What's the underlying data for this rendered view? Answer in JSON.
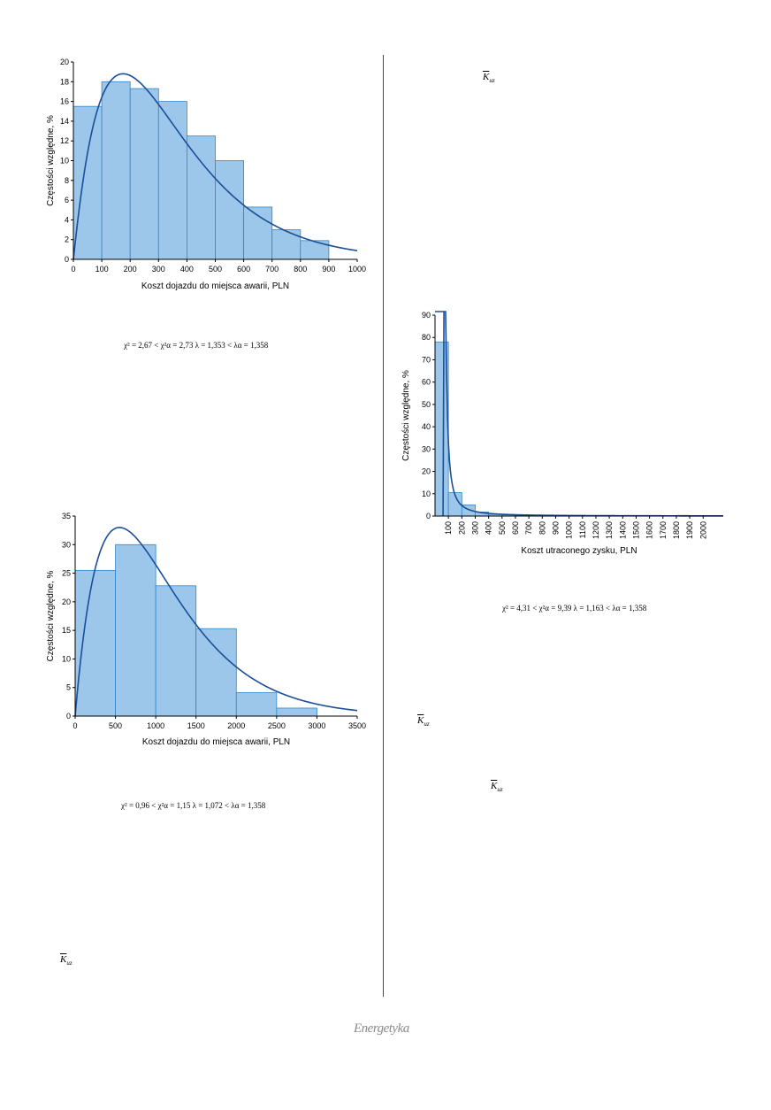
{
  "colors": {
    "bar_fill": "#9cc7ea",
    "bar_stroke": "#2f86c9",
    "curve": "#1a4e9a",
    "axis": "#000000"
  },
  "left_column": {
    "formula1": "χ² = 2,67 < χ²α = 2,73     λ = 1,353 < λα = 1,358",
    "formula2": "χ² = 0,96 < χ²α = 1,15     λ = 1,072 < λα = 1,358",
    "kuz": {
      "symbol": "K",
      "subscript": "uz"
    }
  },
  "right_column": {
    "kuz_top": {
      "symbol": "K",
      "subscript": "uz"
    },
    "formula3": "χ² = 4,31 < χ²α = 9,39     λ = 1,163 < λα = 1,358",
    "kuz_mid": {
      "symbol": "K",
      "subscript": "uz"
    },
    "kuz_low": {
      "symbol": "K",
      "subscript": "uz"
    }
  },
  "footer": {
    "logo": "Energetyka"
  },
  "chart_data": [
    {
      "type": "bar",
      "title": "",
      "xlabel": "Koszt dojazdu do miejsca awarii, PLN",
      "ylabel": "Częstości względne, %",
      "bin_edges": [
        0,
        100,
        200,
        300,
        400,
        500,
        600,
        700,
        800,
        900
      ],
      "values": [
        15.5,
        18,
        17.3,
        16,
        12.5,
        10,
        5.3,
        3,
        1.9
      ],
      "xlim": [
        0,
        1000
      ],
      "ylim": [
        0,
        20
      ],
      "xticks": [
        0,
        100,
        200,
        300,
        400,
        500,
        600,
        700,
        800,
        900,
        1000
      ],
      "yticks": [
        0,
        2,
        4,
        6,
        8,
        10,
        12,
        14,
        16,
        18,
        20
      ],
      "curve": {
        "type": "gamma-like",
        "k": 2.03,
        "theta": 170,
        "peak": 18.8
      }
    },
    {
      "type": "bar",
      "title": "",
      "xlabel": "Koszt dojazdu do miejsca awarii, PLN",
      "ylabel": "Częstości względne, %",
      "bin_edges": [
        0,
        500,
        1000,
        1500,
        2000,
        2500,
        3000
      ],
      "values": [
        25.5,
        30,
        22.8,
        15.3,
        4.1,
        1.4
      ],
      "xlim": [
        0,
        3500
      ],
      "ylim": [
        0,
        35
      ],
      "xticks": [
        0,
        500,
        1000,
        1500,
        2000,
        2500,
        3000,
        3500
      ],
      "yticks": [
        0,
        5,
        10,
        15,
        20,
        25,
        30,
        35
      ],
      "curve": {
        "type": "gamma-like",
        "k": 2.0,
        "theta": 550,
        "peak": 33
      }
    },
    {
      "type": "bar",
      "title": "",
      "xlabel": "Koszt utraconego zysku, PLN",
      "ylabel": "Częstości względne, %",
      "bin_edges": [
        0,
        100,
        200,
        300,
        400,
        500,
        600,
        700,
        800,
        900,
        1000,
        1100,
        1200,
        1300,
        1400,
        1500,
        1600,
        1700,
        1800,
        1900,
        2000,
        2100
      ],
      "values": [
        78,
        10.5,
        5,
        1.8,
        0.8,
        0.5,
        0.4,
        0.3,
        0.3,
        0.2,
        0.2,
        0.2,
        0.2,
        0.2,
        0.2,
        0.1,
        0.1,
        0.1,
        0.3,
        0.1,
        0.1
      ],
      "xlim": [
        0,
        2150
      ],
      "ylim": [
        0,
        90
      ],
      "xticks": [
        100,
        200,
        300,
        400,
        500,
        600,
        700,
        800,
        900,
        1000,
        1100,
        1200,
        1300,
        1400,
        1500,
        1600,
        1700,
        1800,
        1900,
        2000
      ],
      "yticks": [
        0,
        10,
        20,
        30,
        40,
        50,
        60,
        70,
        80,
        90
      ],
      "curve": {
        "type": "decay",
        "scale": 1000,
        "power": 1.55
      }
    }
  ]
}
